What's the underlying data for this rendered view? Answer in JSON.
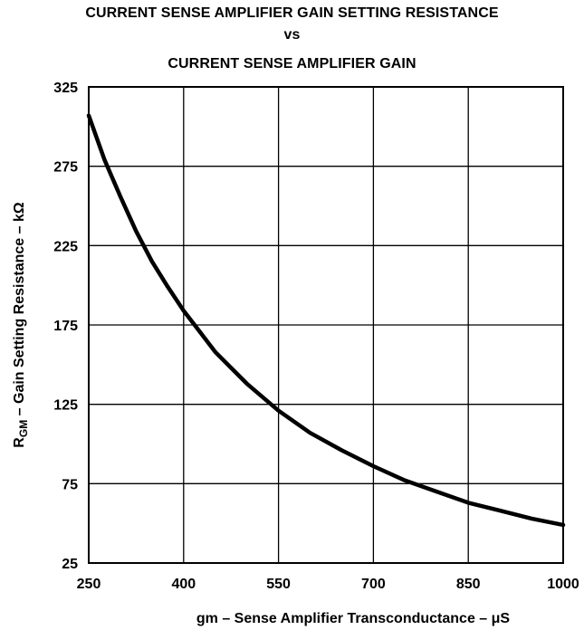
{
  "chart_data": {
    "type": "line",
    "title": "CURRENT SENSE AMPLIFIER GAIN SETTING RESISTANCE",
    "title_vs": "vs",
    "subtitle": "CURRENT SENSE AMPLIFIER GAIN",
    "xlabel": "gm – Sense Amplifier Transconductance – μS",
    "ylabel_main": "R",
    "ylabel_sub": "GM",
    "ylabel_rest": " – Gain Setting Resistance – kΩ",
    "xlim": [
      250,
      1000
    ],
    "ylim": [
      25,
      325
    ],
    "x_ticks": [
      250,
      400,
      550,
      700,
      850,
      1000
    ],
    "y_ticks": [
      25,
      75,
      125,
      175,
      225,
      275,
      325
    ],
    "grid": true,
    "line_color": "#000000",
    "series": [
      {
        "x": [
          250,
          275,
          300,
          325,
          350,
          375,
          400,
          425,
          450,
          500,
          550,
          600,
          650,
          700,
          750,
          800,
          850,
          900,
          950,
          1000
        ],
        "y": [
          307,
          279,
          256,
          234,
          215,
          199,
          184,
          171,
          158,
          138,
          121,
          107,
          96,
          86,
          77,
          70,
          63,
          58,
          53,
          49
        ]
      }
    ]
  }
}
